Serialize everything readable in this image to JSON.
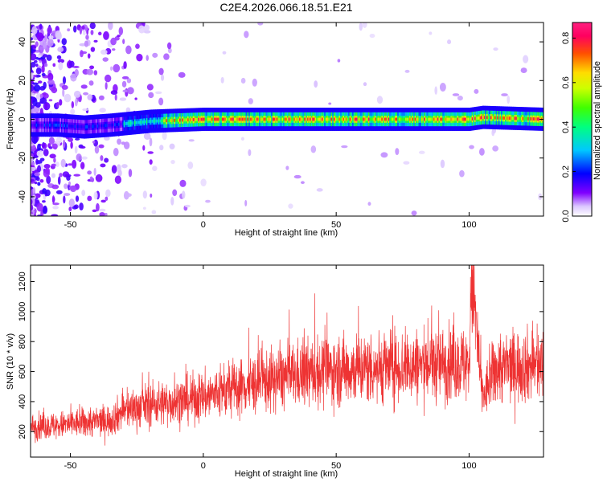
{
  "title": "C2E4.2026.066.18.51.E21",
  "chart_data": [
    {
      "type": "heatmap",
      "xlabel": "Height of straight line (km)",
      "ylabel": "Frequency (Hz)",
      "xlim": [
        -65,
        128
      ],
      "ylim": [
        -50,
        50
      ],
      "xticks": [
        -50,
        0,
        50,
        100
      ],
      "yticks": [
        -40,
        -20,
        0,
        20,
        40
      ],
      "grid": false,
      "description_series": [
        {
          "name": "ridge_center_hz",
          "x": [
            -55,
            -45,
            -35,
            -20,
            0,
            50,
            100,
            105,
            128
          ],
          "values": [
            -3,
            -4,
            -3,
            -1,
            0,
            0,
            0,
            1,
            0
          ]
        }
      ],
      "colorbar": {
        "label": "Normalized spectral amplitude",
        "range": [
          0.0,
          0.87
        ],
        "ticks": [
          0.0,
          0.2,
          0.4,
          0.6,
          0.8
        ]
      }
    },
    {
      "type": "line",
      "xlabel": "Height of straight line (km)",
      "ylabel": "SNR (10 * v/v)",
      "xlim": [
        -65,
        128
      ],
      "ylim": [
        30,
        1310
      ],
      "xticks": [
        -50,
        0,
        50,
        100
      ],
      "yticks": [
        200,
        400,
        600,
        800,
        1000,
        1200
      ],
      "grid": false,
      "series": [
        {
          "name": "SNR",
          "color": "#ee3333",
          "x": [
            -65,
            -55,
            -45,
            -35,
            -30,
            -20,
            -10,
            0,
            10,
            20,
            30,
            40,
            50,
            60,
            70,
            80,
            90,
            100,
            101,
            105,
            110,
            120,
            128
          ],
          "values": [
            230,
            240,
            260,
            275,
            340,
            380,
            400,
            430,
            480,
            520,
            560,
            590,
            610,
            620,
            630,
            640,
            650,
            650,
            1250,
            420,
            620,
            640,
            640
          ]
        }
      ]
    }
  ]
}
